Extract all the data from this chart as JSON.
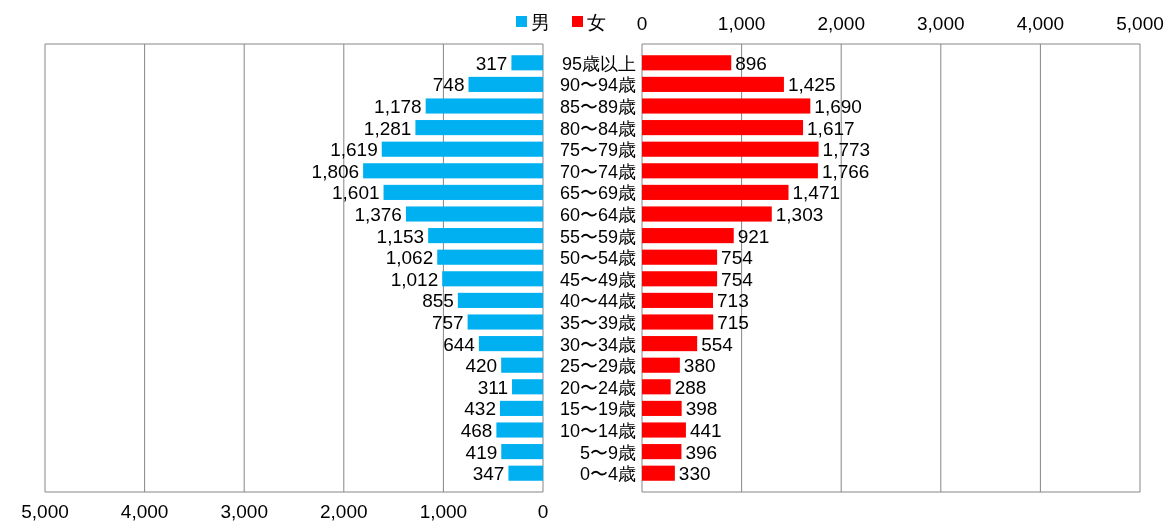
{
  "chart_data": [
    {
      "type": "bar",
      "orientation": "horizontal",
      "categories": [
        null,
        null,
        null,
        null,
        null,
        null,
        null,
        null,
        null,
        null,
        null,
        null,
        null,
        null,
        null,
        null,
        null,
        null,
        null,
        null
      ],
      "series": [
        {
          "name": "男",
          "color": "#00b0f0",
          "values": [
            317,
            748,
            1178,
            1281,
            1619,
            1806,
            1601,
            1376,
            1153,
            1062,
            1012,
            855,
            757,
            644,
            420,
            311,
            432,
            468,
            419,
            347
          ],
          "value_labels": [
            "317",
            "748",
            "1,178",
            "1,281",
            "1,619",
            "1,806",
            "1,601",
            "1,376",
            "1,153",
            "1,062",
            "1,012",
            "855",
            "757",
            "644",
            "420",
            "311",
            "432",
            "468",
            "419",
            "347"
          ]
        }
      ],
      "xlim": [
        5000,
        0
      ],
      "xticks": [
        {
          "value": 5000,
          "label": "5,000"
        },
        {
          "value": 4000,
          "label": "4,000"
        },
        {
          "value": 3000,
          "label": "3,000"
        },
        {
          "value": 2000,
          "label": "2,000"
        },
        {
          "value": 1000,
          "label": "1,000"
        },
        0
      ],
      "grid": "x",
      "legend": "top",
      "tick_labels": "x"
    },
    {
      "type": "bar",
      "orientation": "horizontal",
      "categories": [
        "95歳以上",
        "90〜94歳",
        "85〜89歳",
        "80〜84歳",
        "75〜79歳",
        "70〜74歳",
        "65〜69歳",
        "60〜64歳",
        "55〜59歳",
        "50〜54歳",
        "45〜49歳",
        "40〜44歳",
        "35〜39歳",
        "30〜34歳",
        "25〜29歳",
        "20〜24歳",
        "15〜19歳",
        "10〜14歳",
        "5〜9歳",
        "0〜4歳"
      ],
      "series": [
        {
          "name": "女",
          "color": "#ff0000",
          "values": [
            896,
            1425,
            1690,
            1617,
            1773,
            1766,
            1471,
            1303,
            921,
            754,
            754,
            713,
            715,
            554,
            380,
            288,
            398,
            441,
            396,
            330
          ],
          "value_labels": [
            "896",
            "1,425",
            "1,690",
            "1,617",
            "1,773",
            "1,766",
            "1,471",
            "1,303",
            "921",
            "754",
            "754",
            "713",
            "715",
            "554",
            "380",
            "288",
            "398",
            "441",
            "396",
            "330"
          ]
        }
      ],
      "x2lim": [
        0,
        5000
      ],
      "x2ticks": [
        0,
        {
          "value": 1000,
          "label": "1,000"
        },
        {
          "value": 2000,
          "label": "2,000"
        },
        {
          "value": 3000,
          "label": "3,000"
        },
        {
          "value": 4000,
          "label": "4,000"
        },
        {
          "value": 5000,
          "label": "5,000"
        }
      ],
      "grid": "x",
      "legend": "top"
    }
  ]
}
